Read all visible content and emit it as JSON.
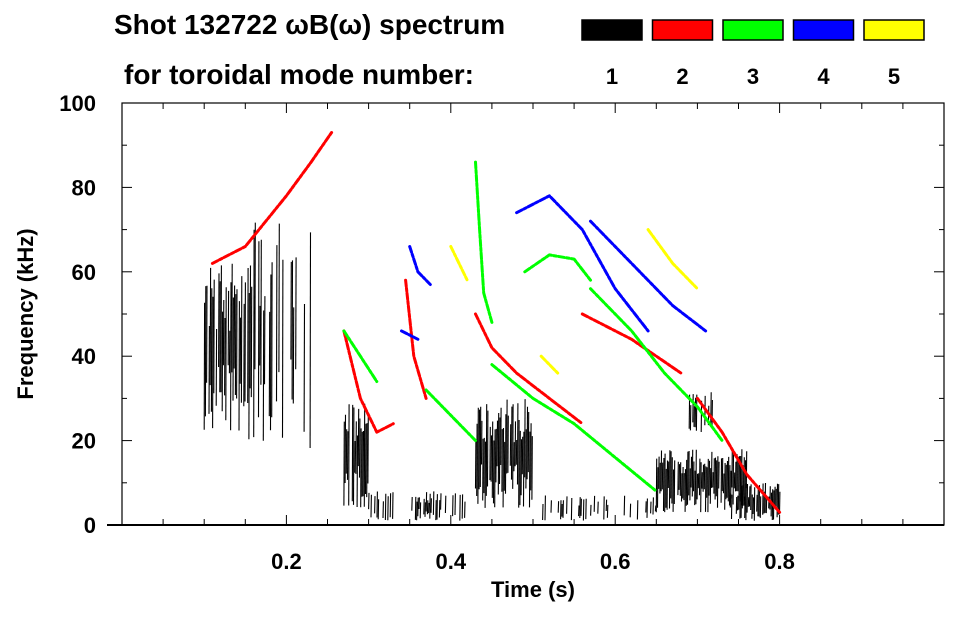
{
  "chart_data": {
    "type": "heatmap",
    "title_line1": "Shot 132722 ωB(ω) spectrum",
    "title_line2": "for toroidal mode number:",
    "xlabel": "Time (s)",
    "ylabel": "Frequency (kHz)",
    "xlim": [
      0,
      1
    ],
    "ylim": [
      0,
      100
    ],
    "xticks": [
      0.2,
      0.4,
      0.6,
      0.8
    ],
    "xtick_labels": [
      "0.2",
      "0.4",
      "0.6",
      "0.8"
    ],
    "yticks": [
      0,
      20,
      40,
      60,
      80,
      100
    ],
    "ytick_labels": [
      "0",
      "20",
      "40",
      "60",
      "80",
      "100"
    ],
    "legend": [
      {
        "mode": "1",
        "color": "#000000"
      },
      {
        "mode": "2",
        "color": "#ff0000"
      },
      {
        "mode": "3",
        "color": "#00ff00"
      },
      {
        "mode": "4",
        "color": "#0000ff"
      },
      {
        "mode": "5",
        "color": "#ffff00"
      }
    ],
    "patches": [
      {
        "mode": 1,
        "t": [
          0.1,
          0.15
        ],
        "f": [
          22,
          62
        ],
        "density": 0.9
      },
      {
        "mode": 1,
        "t": [
          0.15,
          0.23
        ],
        "f": [
          18,
          72
        ],
        "density": 0.45
      },
      {
        "mode": 1,
        "t": [
          0.27,
          0.3
        ],
        "f": [
          4,
          30
        ],
        "density": 0.8
      },
      {
        "mode": 1,
        "t": [
          0.3,
          0.42
        ],
        "f": [
          1,
          8
        ],
        "density": 0.35
      },
      {
        "mode": 1,
        "t": [
          0.43,
          0.5
        ],
        "f": [
          4,
          30
        ],
        "density": 0.9
      },
      {
        "mode": 1,
        "t": [
          0.5,
          0.65
        ],
        "f": [
          1,
          7
        ],
        "density": 0.3
      },
      {
        "mode": 1,
        "t": [
          0.65,
          0.76
        ],
        "f": [
          3,
          18
        ],
        "density": 0.95
      },
      {
        "mode": 1,
        "t": [
          0.74,
          0.8
        ],
        "f": [
          1,
          10
        ],
        "density": 0.8
      },
      {
        "mode": 1,
        "t": [
          0.69,
          0.72
        ],
        "f": [
          22,
          32
        ],
        "density": 0.7
      }
    ],
    "traces": [
      {
        "mode": 2,
        "points": [
          [
            0.11,
            62
          ],
          [
            0.15,
            66
          ],
          [
            0.2,
            78
          ],
          [
            0.23,
            86
          ],
          [
            0.255,
            93
          ]
        ]
      },
      {
        "mode": 2,
        "points": [
          [
            0.27,
            46
          ],
          [
            0.29,
            30
          ],
          [
            0.31,
            22
          ],
          [
            0.33,
            24
          ]
        ]
      },
      {
        "mode": 2,
        "points": [
          [
            0.345,
            58
          ],
          [
            0.355,
            40
          ],
          [
            0.37,
            30
          ]
        ]
      },
      {
        "mode": 2,
        "points": [
          [
            0.43,
            50
          ],
          [
            0.45,
            42
          ],
          [
            0.48,
            36
          ],
          [
            0.52,
            30
          ],
          [
            0.56,
            24
          ]
        ]
      },
      {
        "mode": 2,
        "points": [
          [
            0.56,
            50
          ],
          [
            0.62,
            44
          ],
          [
            0.68,
            36
          ]
        ]
      },
      {
        "mode": 2,
        "points": [
          [
            0.7,
            30
          ],
          [
            0.73,
            22
          ],
          [
            0.76,
            12
          ],
          [
            0.8,
            3
          ]
        ]
      },
      {
        "mode": 3,
        "points": [
          [
            0.27,
            46
          ],
          [
            0.29,
            40
          ],
          [
            0.31,
            34
          ]
        ]
      },
      {
        "mode": 3,
        "points": [
          [
            0.43,
            86
          ],
          [
            0.435,
            70
          ],
          [
            0.44,
            55
          ],
          [
            0.45,
            48
          ]
        ]
      },
      {
        "mode": 3,
        "points": [
          [
            0.49,
            60
          ],
          [
            0.52,
            64
          ],
          [
            0.55,
            63
          ],
          [
            0.57,
            58
          ]
        ]
      },
      {
        "mode": 3,
        "points": [
          [
            0.57,
            56
          ],
          [
            0.62,
            46
          ],
          [
            0.66,
            36
          ],
          [
            0.7,
            28
          ],
          [
            0.73,
            20
          ]
        ]
      },
      {
        "mode": 3,
        "points": [
          [
            0.45,
            38
          ],
          [
            0.5,
            30
          ],
          [
            0.55,
            24
          ],
          [
            0.6,
            16
          ],
          [
            0.65,
            8
          ]
        ]
      },
      {
        "mode": 3,
        "points": [
          [
            0.37,
            32
          ],
          [
            0.4,
            26
          ],
          [
            0.43,
            20
          ]
        ]
      },
      {
        "mode": 4,
        "points": [
          [
            0.35,
            66
          ],
          [
            0.36,
            60
          ],
          [
            0.375,
            57
          ]
        ]
      },
      {
        "mode": 4,
        "points": [
          [
            0.48,
            74
          ],
          [
            0.52,
            78
          ],
          [
            0.56,
            70
          ],
          [
            0.6,
            56
          ],
          [
            0.64,
            46
          ]
        ]
      },
      {
        "mode": 4,
        "points": [
          [
            0.57,
            72
          ],
          [
            0.62,
            62
          ],
          [
            0.67,
            52
          ],
          [
            0.71,
            46
          ]
        ]
      },
      {
        "mode": 4,
        "points": [
          [
            0.34,
            46
          ],
          [
            0.36,
            44
          ]
        ]
      },
      {
        "mode": 5,
        "points": [
          [
            0.64,
            70
          ],
          [
            0.67,
            62
          ],
          [
            0.7,
            56
          ]
        ]
      },
      {
        "mode": 5,
        "points": [
          [
            0.4,
            66
          ],
          [
            0.42,
            58
          ]
        ]
      },
      {
        "mode": 5,
        "points": [
          [
            0.51,
            40
          ],
          [
            0.53,
            36
          ]
        ]
      }
    ]
  }
}
